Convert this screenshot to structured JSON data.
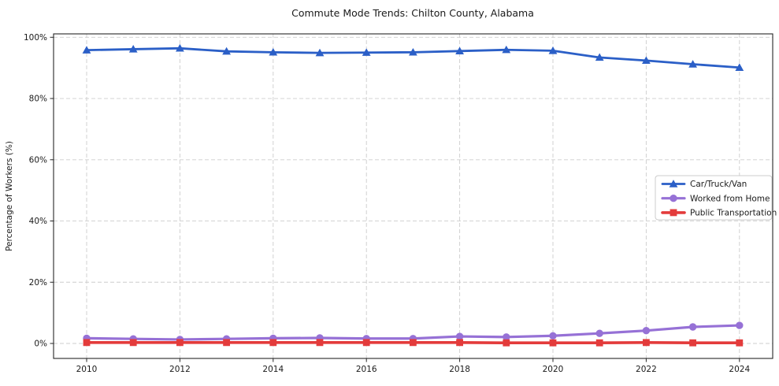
{
  "chart_data": {
    "type": "line",
    "title": "Commute Mode Trends: Chilton County, Alabama",
    "xlabel": "",
    "ylabel": "Percentage of Workers (%)",
    "x": [
      2010,
      2011,
      2012,
      2013,
      2014,
      2015,
      2016,
      2017,
      2018,
      2019,
      2020,
      2021,
      2022,
      2023,
      2024
    ],
    "series": [
      {
        "name": "Car/Truck/Van",
        "color": "#2b5fc7",
        "marker": "triangle",
        "values": [
          95.8,
          96.1,
          96.4,
          95.4,
          95.1,
          94.9,
          95.0,
          95.1,
          95.5,
          95.9,
          95.6,
          93.4,
          92.4,
          91.2,
          90.1
        ]
      },
      {
        "name": "Worked from Home",
        "color": "#9671d6",
        "marker": "circle",
        "values": [
          1.7,
          1.5,
          1.3,
          1.5,
          1.7,
          1.8,
          1.6,
          1.6,
          2.3,
          2.1,
          2.5,
          3.3,
          4.2,
          5.4,
          5.9
        ]
      },
      {
        "name": "Public Transportation",
        "color": "#e33b3b",
        "marker": "square",
        "values": [
          0.3,
          0.3,
          0.3,
          0.3,
          0.3,
          0.3,
          0.3,
          0.3,
          0.3,
          0.2,
          0.2,
          0.2,
          0.3,
          0.2,
          0.2
        ]
      }
    ],
    "xticks": [
      2010,
      2012,
      2014,
      2016,
      2018,
      2020,
      2022,
      2024
    ],
    "xtick_labels": [
      "2010",
      "2012",
      "2014",
      "2016",
      "2018",
      "2020",
      "2022",
      "2024"
    ],
    "yticks": [
      0,
      20,
      40,
      60,
      80,
      100
    ],
    "ytick_labels": [
      "0%",
      "20%",
      "40%",
      "60%",
      "80%",
      "100%"
    ],
    "ylim": [
      -5,
      101
    ],
    "xlim": [
      2009.3,
      2024.7
    ],
    "grid": true,
    "grid_style": "dashed",
    "legend_position": "center-right"
  }
}
